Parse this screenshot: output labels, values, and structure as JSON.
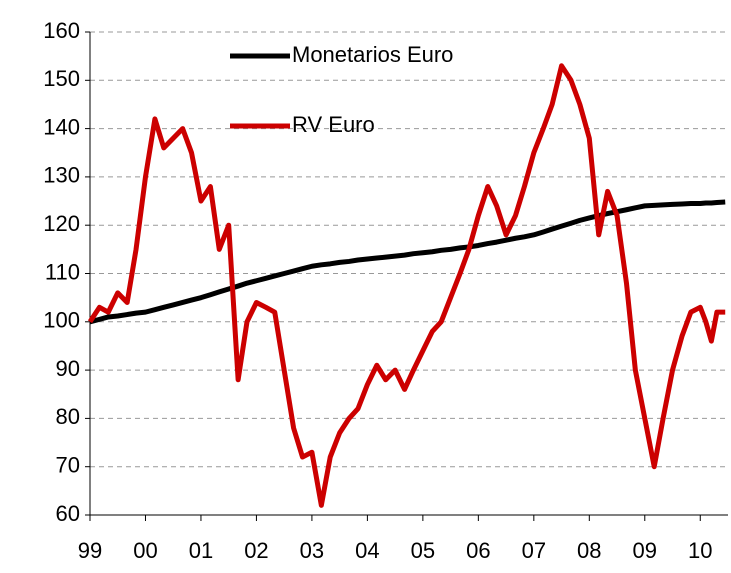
{
  "chart_data": {
    "type": "line",
    "x": [
      1999,
      1999.17,
      1999.33,
      1999.5,
      1999.67,
      1999.83,
      2000,
      2000.17,
      2000.33,
      2000.5,
      2000.67,
      2000.83,
      2001,
      2001.17,
      2001.33,
      2001.5,
      2001.67,
      2001.83,
      2002,
      2002.17,
      2002.33,
      2002.5,
      2002.67,
      2002.83,
      2003,
      2003.17,
      2003.33,
      2003.5,
      2003.67,
      2003.83,
      2004,
      2004.17,
      2004.33,
      2004.5,
      2004.67,
      2004.83,
      2005,
      2005.17,
      2005.33,
      2005.5,
      2005.67,
      2005.83,
      2006,
      2006.17,
      2006.33,
      2006.5,
      2006.67,
      2006.83,
      2007,
      2007.17,
      2007.33,
      2007.5,
      2007.67,
      2007.83,
      2008,
      2008.17,
      2008.33,
      2008.5,
      2008.67,
      2008.83,
      2009,
      2009.17,
      2009.33,
      2009.5,
      2009.67,
      2009.83,
      2010,
      2010.1,
      2010.2,
      2010.3,
      2010.45
    ],
    "series": [
      {
        "name": "Monetarios Euro",
        "color": "#000000",
        "values": [
          100,
          100.5,
          101,
          101.2,
          101.5,
          101.8,
          102,
          102.5,
          103,
          103.5,
          104,
          104.5,
          105,
          105.6,
          106.2,
          106.8,
          107.4,
          108,
          108.5,
          109,
          109.5,
          110,
          110.5,
          111,
          111.5,
          111.8,
          112,
          112.3,
          112.5,
          112.8,
          113,
          113.2,
          113.4,
          113.6,
          113.8,
          114.1,
          114.3,
          114.5,
          114.8,
          115,
          115.3,
          115.5,
          115.8,
          116.2,
          116.5,
          116.9,
          117.3,
          117.6,
          118,
          118.6,
          119.2,
          119.8,
          120.4,
          121,
          121.5,
          122,
          122.4,
          122.8,
          123.2,
          123.6,
          124,
          124.1,
          124.2,
          124.3,
          124.4,
          124.5,
          124.5,
          124.6,
          124.6,
          124.7,
          124.8
        ]
      },
      {
        "name": "RV Euro",
        "color": "#cc0000",
        "values": [
          100,
          103,
          102,
          106,
          104,
          115,
          130,
          142,
          136,
          138,
          140,
          135,
          125,
          128,
          115,
          120,
          88,
          100,
          104,
          103,
          102,
          90,
          78,
          72,
          73,
          62,
          72,
          77,
          80,
          82,
          87,
          91,
          88,
          90,
          86,
          90,
          94,
          98,
          100,
          105,
          110,
          115,
          122,
          128,
          124,
          118,
          122,
          128,
          135,
          140,
          145,
          153,
          150,
          145,
          138,
          118,
          127,
          122,
          108,
          90,
          80,
          70,
          80,
          90,
          97,
          102,
          103,
          100,
          96,
          102,
          102
        ]
      }
    ],
    "xlim": [
      1999,
      2010.5
    ],
    "xticks": [
      {
        "value": 1999,
        "label": "99"
      },
      {
        "value": 2000,
        "label": "00"
      },
      {
        "value": 2001,
        "label": "01"
      },
      {
        "value": 2002,
        "label": "02"
      },
      {
        "value": 2003,
        "label": "03"
      },
      {
        "value": 2004,
        "label": "04"
      },
      {
        "value": 2005,
        "label": "05"
      },
      {
        "value": 2006,
        "label": "06"
      },
      {
        "value": 2007,
        "label": "07"
      },
      {
        "value": 2008,
        "label": "08"
      },
      {
        "value": 2009,
        "label": "09"
      },
      {
        "value": 2010,
        "label": "10"
      }
    ],
    "ylim": [
      60,
      160
    ],
    "yticks": [
      60,
      70,
      80,
      90,
      100,
      110,
      120,
      130,
      140,
      150,
      160
    ],
    "grid": true
  }
}
